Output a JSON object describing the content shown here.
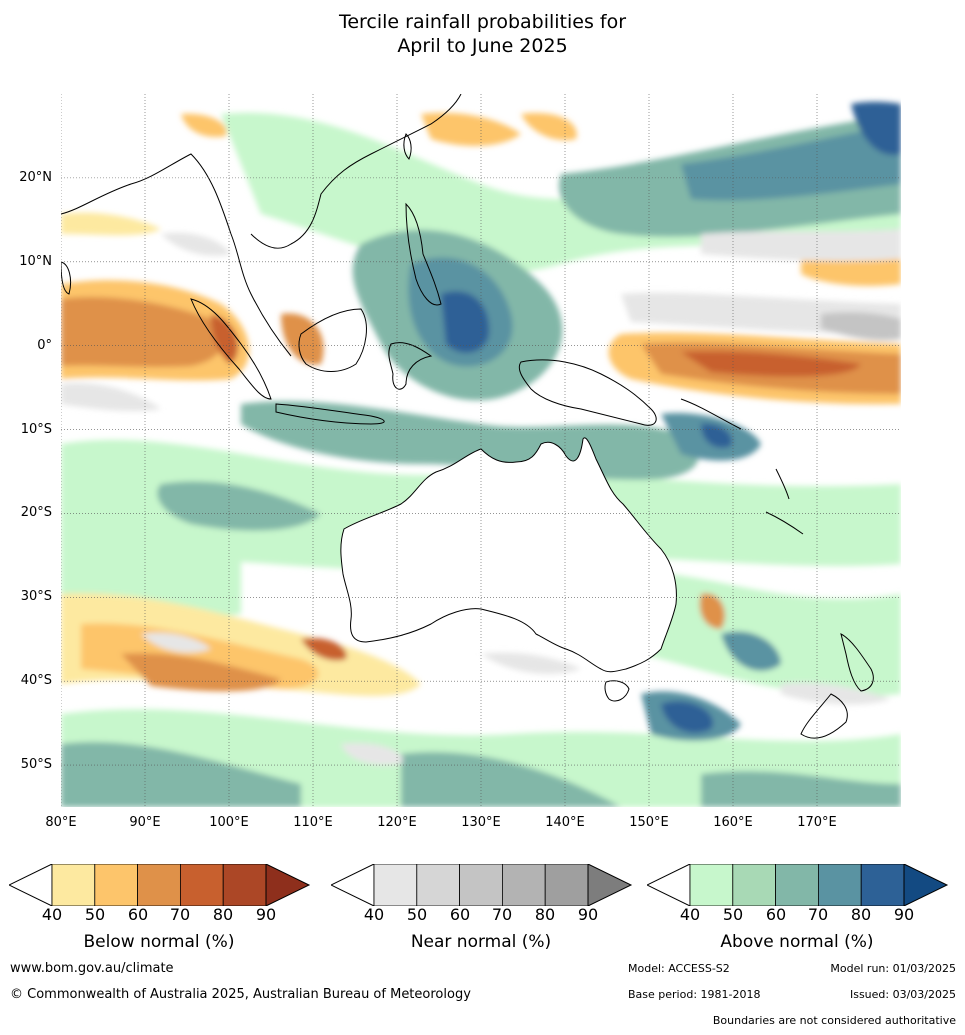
{
  "title": {
    "line1": "Tercile rainfall probabilities for",
    "line2": "April to June 2025"
  },
  "map": {
    "lon_range": [
      80,
      180
    ],
    "lat_range": [
      -55,
      30
    ],
    "lat_labels": [
      "20°N",
      "10°N",
      "0°",
      "10°S",
      "20°S",
      "30°S",
      "40°S",
      "50°S"
    ],
    "lon_labels": [
      "80°E",
      "90°E",
      "100°E",
      "110°E",
      "120°E",
      "130°E",
      "140°E",
      "150°E",
      "160°E",
      "170°E"
    ],
    "gridlines": true
  },
  "colorbars": [
    {
      "label": "Below normal (%)",
      "ticks": [
        "40",
        "50",
        "60",
        "70",
        "80",
        "90"
      ],
      "colors": [
        "#fde9a0",
        "#fdc56b",
        "#df9149",
        "#c8602e",
        "#ac4726"
      ],
      "extend_color": "#8e2f1c"
    },
    {
      "label": "Near normal (%)",
      "ticks": [
        "40",
        "50",
        "60",
        "70",
        "80",
        "90"
      ],
      "colors": [
        "#e6e6e6",
        "#d6d6d6",
        "#c4c4c4",
        "#b3b3b3",
        "#9f9f9f"
      ],
      "extend_color": "#7d7d7d"
    },
    {
      "label": "Above normal (%)",
      "ticks": [
        "40",
        "50",
        "60",
        "70",
        "80",
        "90"
      ],
      "colors": [
        "#c7f7cc",
        "#a8d9b5",
        "#82b7a8",
        "#5a93a2",
        "#2d6196"
      ],
      "extend_color": "#134a82"
    }
  ],
  "footer": {
    "website": "www.bom.gov.au/climate",
    "copyright": "© Commonwealth of Australia 2025, Australian Bureau of Meteorology",
    "model": "Model: ACCESS-S2",
    "model_run": "Model run: 01/03/2025",
    "base_period": "Base period: 1981-2018",
    "issued": "Issued: 03/03/2025",
    "disclaimer": "Boundaries are not considered authoritative"
  }
}
